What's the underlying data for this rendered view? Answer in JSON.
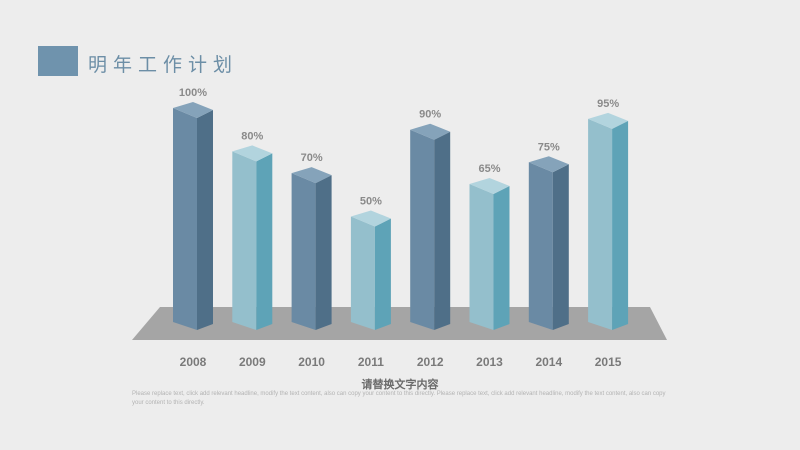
{
  "header": {
    "title": "明年工作计划"
  },
  "chart_data": {
    "type": "bar",
    "categories": [
      "2008",
      "2009",
      "2010",
      "2011",
      "2012",
      "2013",
      "2014",
      "2015"
    ],
    "values": [
      100,
      80,
      70,
      50,
      90,
      65,
      75,
      95
    ],
    "labels": [
      "100%",
      "80%",
      "70%",
      "50%",
      "90%",
      "65%",
      "75%",
      "95%"
    ],
    "ylim": [
      0,
      100
    ],
    "grid": false,
    "colors": {
      "dark_front": "#6a8aa4",
      "dark_side": "#4f6f88",
      "dark_top": "#85a3ba",
      "light_front": "#94bfcc",
      "light_side": "#5ea3b7",
      "light_top": "#b2d4de",
      "floor": "#a5a5a5"
    }
  },
  "caption": "请替换文字内容",
  "body_text": "Please replace text, click add relevant headline, modify the text content, also can copy your content to this directly. Please replace text, click add relevant headline, modify the text content, also can copy your content to this directly."
}
